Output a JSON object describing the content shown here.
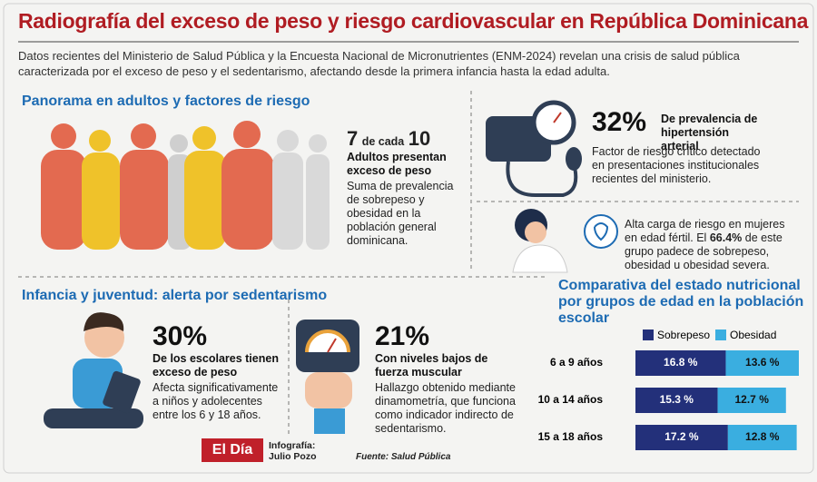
{
  "header": {
    "title": "Radiografía del exceso de peso y riesgo cardiovascular en República Dominicana",
    "intro": "Datos recientes del Ministerio de Salud Pública y la Encuesta Nacional de Micronutrientes (ENM-2024) revelan una crisis de salud pública caracterizada por el exceso de peso y el sedentarismo, afectando desde la primera infancia hasta la edad adulta."
  },
  "adults": {
    "heading": "Panorama en adultos y factores de riesgo",
    "stat_number": "7",
    "stat_mid": "de cada",
    "stat_total": "10",
    "stat_label": "Adultos presentan exceso de peso",
    "text": "Suma de prevalencia de sobrepeso y obesidad en la población general dominicana."
  },
  "hypertension": {
    "value": "32%",
    "label": "De prevalencia de hipertensión arterial",
    "text": "Factor de riesgo crítico detectado en presentaciones institucionales recientes del ministerio."
  },
  "women": {
    "text_before": "Alta carga de riesgo en mujeres en edad fértil. El",
    "highlight": "66.4%",
    "text_after": "de este grupo padece de sobrepeso, obesidad u obesidad severa."
  },
  "youth": {
    "heading": "Infancia y juventud: alerta por sedentarismo",
    "stats": [
      {
        "value": "30%",
        "label": "De los escolares tienen exceso de peso",
        "text": "Afecta significativamente a niños y adolecentes entre los 6 y 18 años."
      },
      {
        "value": "21%",
        "label": "Con niveles bajos de fuerza muscular",
        "text": "Hallazgo obtenido mediante dinamometría, que funciona como indicador indirecto de sedentarismo."
      }
    ]
  },
  "chart_data": {
    "type": "bar",
    "orientation": "horizontal",
    "stacked": true,
    "title": "Comparativa del estado nutricional por grupos de edad en la población escolar",
    "categories": [
      "6 a 9 años",
      "10 a 14 años",
      "15 a 18 años"
    ],
    "series": [
      {
        "name": "Sobrepeso",
        "color": "#23307a",
        "values": [
          16.8,
          15.3,
          17.2
        ],
        "value_labels": [
          "16.8 %",
          "15.3 %",
          "17.2 %"
        ]
      },
      {
        "name": "Obesidad",
        "color": "#3aaee0",
        "values": [
          13.6,
          12.7,
          12.8
        ],
        "value_labels": [
          "13.6 %",
          "12.7 %",
          "12.8 %"
        ]
      }
    ]
  },
  "footer": {
    "brand": "El Día",
    "credit_label": "Infografía:",
    "credit_name": "Julio Pozo",
    "source": "Fuente: Salud Pública"
  }
}
